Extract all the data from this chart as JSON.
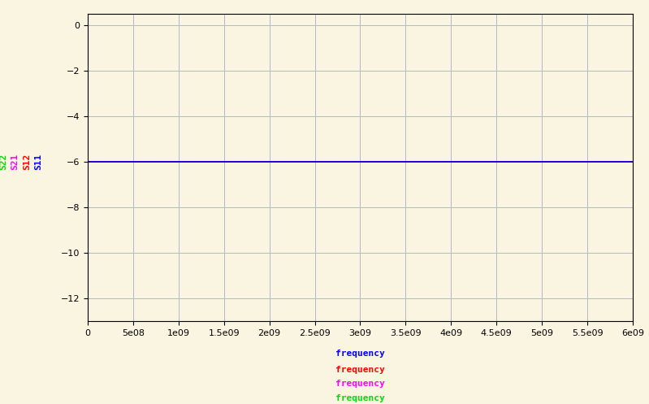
{
  "background_color": "#faf5e0",
  "plot_background_color": "#faf5e0",
  "xlim": [
    0,
    6000000000.0
  ],
  "ylim": [
    -13,
    0.5
  ],
  "yticks": [
    0,
    -2,
    -4,
    -6,
    -8,
    -10,
    -12
  ],
  "xticks": [
    0,
    500000000.0,
    1000000000.0,
    1500000000.0,
    2000000000.0,
    2500000000.0,
    3000000000.0,
    3500000000.0,
    4000000000.0,
    4500000000.0,
    5000000000.0,
    5500000000.0,
    6000000000.0
  ],
  "xtick_labels": [
    "0",
    "5e08",
    "1e09",
    "1.5e09",
    "2e09",
    "2.5e09",
    "3e09",
    "3.5e09",
    "4e09",
    "4.5e09",
    "5e09",
    "5.5e09",
    "6e09"
  ],
  "grid_color": "#b0b8d0",
  "grid_linewidth": 0.7,
  "series": [
    {
      "label": "S22",
      "color": "#00dd00",
      "value": -6.0
    },
    {
      "label": "S21",
      "color": "#ff00ff",
      "value": -6.0
    },
    {
      "label": "S12",
      "color": "#ff0000",
      "value": -6.0
    },
    {
      "label": "S11",
      "color": "#0000ff",
      "value": -6.0
    }
  ],
  "xlabel_labels": [
    {
      "text": "frequency",
      "color": "#0000ff"
    },
    {
      "text": "frequency",
      "color": "#ff0000"
    },
    {
      "text": "frequency",
      "color": "#ff00ff"
    },
    {
      "text": "frequency",
      "color": "#00dd00"
    }
  ],
  "ylabel_labels": [
    {
      "text": "S22",
      "color": "#00dd00"
    },
    {
      "text": "S21",
      "color": "#ff00ff"
    },
    {
      "text": "S12",
      "color": "#ff0000"
    },
    {
      "text": "S11",
      "color": "#0000ff"
    }
  ],
  "line_linewidth": 1.2,
  "tick_fontsize": 8,
  "label_fontsize": 8,
  "freq_fontsize": 8
}
